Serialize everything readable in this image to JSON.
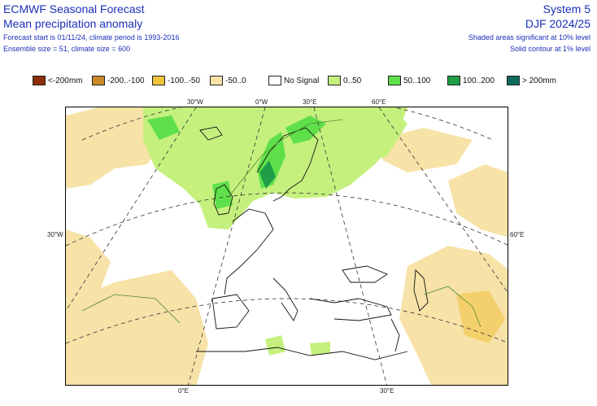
{
  "header": {
    "title": "ECMWF Seasonal Forecast",
    "subtitle": "Mean precipitation anomaly",
    "forecast_info": "Forecast start is 01/11/24, climate period is 1993-2016",
    "ensemble_info": "Ensemble size = 51, climate size = 600",
    "system": "System 5",
    "season": "DJF 2024/25",
    "sig_note_1": "Shaded areas significant at 10% level",
    "sig_note_2": "Solid contour at 1% level"
  },
  "legend": {
    "items": [
      {
        "label": "<-200mm",
        "color": "#8b2e08"
      },
      {
        "label": "-200..-100",
        "color": "#c98a2a"
      },
      {
        "label": "-100..-50",
        "color": "#f2c13a"
      },
      {
        "label": "-50..0",
        "color": "#f7e2a8"
      },
      {
        "label": "No Signal",
        "color": "#ffffff"
      },
      {
        "label": "0..50",
        "color": "#c5f07e"
      },
      {
        "label": "50..100",
        "color": "#5fe04a"
      },
      {
        "label": "100..200",
        "color": "#1f9e47"
      },
      {
        "label": "> 200mm",
        "color": "#0d6b5b"
      }
    ]
  },
  "map": {
    "tick_labels": {
      "top": [
        "30°W",
        "0°W",
        "30°E",
        "60°E"
      ],
      "left": [
        "30°W"
      ],
      "right": [
        "60°E"
      ],
      "bottom": [
        "0°E",
        "30°E"
      ]
    }
  }
}
